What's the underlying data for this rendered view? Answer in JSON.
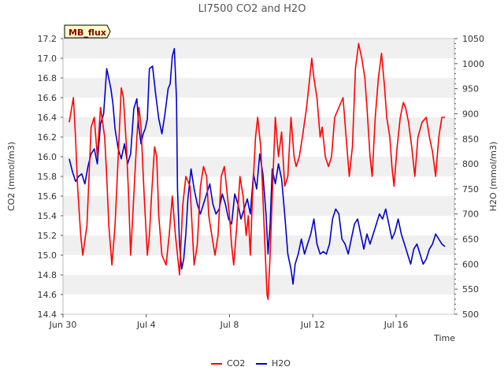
{
  "chart_data": {
    "type": "line",
    "title": "LI7500 CO2 and H2O",
    "badge": "MB_flux",
    "xlabel": "Time",
    "ylabel_left": "CO2 (mmol/m3)",
    "ylabel_right": "H2O (mmol/m3)",
    "x_range_days": [
      0,
      18.8
    ],
    "x_ticks": [
      {
        "label": "Jun 30",
        "day": 0
      },
      {
        "label": "Jul 4",
        "day": 4
      },
      {
        "label": "Jul 8",
        "day": 8
      },
      {
        "label": "Jul 12",
        "day": 12
      },
      {
        "label": "Jul 16",
        "day": 16
      }
    ],
    "ylim_left": [
      14.4,
      17.2
    ],
    "yticks_left": [
      "14.4",
      "14.6",
      "14.8",
      "15.0",
      "15.2",
      "15.4",
      "15.6",
      "15.8",
      "16.0",
      "16.2",
      "16.4",
      "16.6",
      "16.8",
      "17.0",
      "17.2"
    ],
    "ylim_right": [
      500,
      1050
    ],
    "yticks_right": [
      "500",
      "550",
      "600",
      "650",
      "700",
      "750",
      "800",
      "850",
      "900",
      "950",
      "1000",
      "1050"
    ],
    "grid": "alternating horizontal bands",
    "legend_position": "bottom-center",
    "series": [
      {
        "name": "CO2",
        "axis": "left",
        "color": "#ff0000",
        "points": [
          [
            0.3,
            16.35
          ],
          [
            0.5,
            16.6
          ],
          [
            0.6,
            16.2
          ],
          [
            0.7,
            15.7
          ],
          [
            0.85,
            15.2
          ],
          [
            0.95,
            15.0
          ],
          [
            1.15,
            15.3
          ],
          [
            1.35,
            16.3
          ],
          [
            1.5,
            16.4
          ],
          [
            1.65,
            16.0
          ],
          [
            1.8,
            16.5
          ],
          [
            2.0,
            16.2
          ],
          [
            2.1,
            15.8
          ],
          [
            2.2,
            15.3
          ],
          [
            2.35,
            14.9
          ],
          [
            2.5,
            15.3
          ],
          [
            2.65,
            16.0
          ],
          [
            2.8,
            16.7
          ],
          [
            2.9,
            16.6
          ],
          [
            3.05,
            16.1
          ],
          [
            3.15,
            15.6
          ],
          [
            3.25,
            15.0
          ],
          [
            3.35,
            15.4
          ],
          [
            3.45,
            15.8
          ],
          [
            3.55,
            16.2
          ],
          [
            3.65,
            16.5
          ],
          [
            3.75,
            16.3
          ],
          [
            3.9,
            15.6
          ],
          [
            4.05,
            15.0
          ],
          [
            4.15,
            15.2
          ],
          [
            4.25,
            15.6
          ],
          [
            4.4,
            16.1
          ],
          [
            4.5,
            16.0
          ],
          [
            4.6,
            15.4
          ],
          [
            4.75,
            15.0
          ],
          [
            4.95,
            14.9
          ],
          [
            5.1,
            15.2
          ],
          [
            5.25,
            15.6
          ],
          [
            5.4,
            15.2
          ],
          [
            5.5,
            15.0
          ],
          [
            5.6,
            14.8
          ],
          [
            5.75,
            15.5
          ],
          [
            5.9,
            15.8
          ],
          [
            6.1,
            15.7
          ],
          [
            6.2,
            15.3
          ],
          [
            6.3,
            14.9
          ],
          [
            6.45,
            15.1
          ],
          [
            6.6,
            15.7
          ],
          [
            6.75,
            15.9
          ],
          [
            6.9,
            15.8
          ],
          [
            7.0,
            15.4
          ],
          [
            7.15,
            15.2
          ],
          [
            7.3,
            15.0
          ],
          [
            7.45,
            15.2
          ],
          [
            7.6,
            15.8
          ],
          [
            7.75,
            15.9
          ],
          [
            7.9,
            15.6
          ],
          [
            8.0,
            15.4
          ],
          [
            8.1,
            15.1
          ],
          [
            8.2,
            14.9
          ],
          [
            8.35,
            15.3
          ],
          [
            8.5,
            15.8
          ],
          [
            8.65,
            15.6
          ],
          [
            8.8,
            15.2
          ],
          [
            8.9,
            15.4
          ],
          [
            9.0,
            15.0
          ],
          [
            9.1,
            15.6
          ],
          [
            9.25,
            16.2
          ],
          [
            9.35,
            16.4
          ],
          [
            9.5,
            16.1
          ],
          [
            9.6,
            15.6
          ],
          [
            9.7,
            15.1
          ],
          [
            9.8,
            14.6
          ],
          [
            9.85,
            14.55
          ],
          [
            9.95,
            15.0
          ],
          [
            10.05,
            15.6
          ],
          [
            10.2,
            16.4
          ],
          [
            10.35,
            16.0
          ],
          [
            10.5,
            16.25
          ],
          [
            10.65,
            15.7
          ],
          [
            10.8,
            15.8
          ],
          [
            10.95,
            16.4
          ],
          [
            11.1,
            16.0
          ],
          [
            11.2,
            15.9
          ],
          [
            11.35,
            16.0
          ],
          [
            11.5,
            16.2
          ],
          [
            11.7,
            16.5
          ],
          [
            11.85,
            16.8
          ],
          [
            11.95,
            17.0
          ],
          [
            12.05,
            16.8
          ],
          [
            12.2,
            16.6
          ],
          [
            12.35,
            16.2
          ],
          [
            12.45,
            16.3
          ],
          [
            12.6,
            16.0
          ],
          [
            12.75,
            15.9
          ],
          [
            12.9,
            16.0
          ],
          [
            13.05,
            16.4
          ],
          [
            13.25,
            16.5
          ],
          [
            13.45,
            16.6
          ],
          [
            13.6,
            16.2
          ],
          [
            13.75,
            15.8
          ],
          [
            13.9,
            16.1
          ],
          [
            14.05,
            16.9
          ],
          [
            14.2,
            17.15
          ],
          [
            14.35,
            17.0
          ],
          [
            14.5,
            16.8
          ],
          [
            14.6,
            16.5
          ],
          [
            14.75,
            16.0
          ],
          [
            14.85,
            15.8
          ],
          [
            15.0,
            16.4
          ],
          [
            15.15,
            16.8
          ],
          [
            15.3,
            17.05
          ],
          [
            15.45,
            16.7
          ],
          [
            15.55,
            16.4
          ],
          [
            15.7,
            16.2
          ],
          [
            15.8,
            15.9
          ],
          [
            15.9,
            15.7
          ],
          [
            16.05,
            16.1
          ],
          [
            16.2,
            16.4
          ],
          [
            16.35,
            16.55
          ],
          [
            16.45,
            16.5
          ],
          [
            16.6,
            16.35
          ],
          [
            16.75,
            16.1
          ],
          [
            16.9,
            15.8
          ],
          [
            17.05,
            16.2
          ],
          [
            17.25,
            16.35
          ],
          [
            17.45,
            16.4
          ],
          [
            17.6,
            16.2
          ],
          [
            17.75,
            16.05
          ],
          [
            17.9,
            15.8
          ],
          [
            18.05,
            16.2
          ],
          [
            18.2,
            16.4
          ],
          [
            18.35,
            16.4
          ]
        ]
      },
      {
        "name": "H2O",
        "axis": "right",
        "color": "#0000cc",
        "points": [
          [
            0.3,
            810
          ],
          [
            0.45,
            785
          ],
          [
            0.6,
            765
          ],
          [
            0.75,
            775
          ],
          [
            0.9,
            780
          ],
          [
            1.05,
            760
          ],
          [
            1.2,
            795
          ],
          [
            1.35,
            820
          ],
          [
            1.5,
            830
          ],
          [
            1.65,
            800
          ],
          [
            1.8,
            880
          ],
          [
            1.95,
            900
          ],
          [
            2.1,
            990
          ],
          [
            2.2,
            970
          ],
          [
            2.3,
            950
          ],
          [
            2.4,
            920
          ],
          [
            2.5,
            870
          ],
          [
            2.65,
            830
          ],
          [
            2.8,
            810
          ],
          [
            2.95,
            840
          ],
          [
            3.1,
            800
          ],
          [
            3.25,
            820
          ],
          [
            3.4,
            910
          ],
          [
            3.55,
            930
          ],
          [
            3.65,
            870
          ],
          [
            3.75,
            840
          ],
          [
            3.85,
            860
          ],
          [
            3.95,
            870
          ],
          [
            4.05,
            890
          ],
          [
            4.15,
            990
          ],
          [
            4.3,
            995
          ],
          [
            4.45,
            940
          ],
          [
            4.6,
            890
          ],
          [
            4.75,
            860
          ],
          [
            4.9,
            900
          ],
          [
            5.05,
            950
          ],
          [
            5.15,
            960
          ],
          [
            5.25,
            1015
          ],
          [
            5.35,
            1030
          ],
          [
            5.45,
            930
          ],
          [
            5.5,
            750
          ],
          [
            5.6,
            640
          ],
          [
            5.7,
            590
          ],
          [
            5.8,
            610
          ],
          [
            5.9,
            660
          ],
          [
            6.0,
            730
          ],
          [
            6.15,
            790
          ],
          [
            6.3,
            750
          ],
          [
            6.45,
            720
          ],
          [
            6.6,
            700
          ],
          [
            6.75,
            720
          ],
          [
            6.9,
            740
          ],
          [
            7.05,
            760
          ],
          [
            7.2,
            720
          ],
          [
            7.35,
            700
          ],
          [
            7.5,
            710
          ],
          [
            7.65,
            740
          ],
          [
            7.8,
            720
          ],
          [
            7.95,
            690
          ],
          [
            8.1,
            680
          ],
          [
            8.25,
            740
          ],
          [
            8.4,
            720
          ],
          [
            8.55,
            690
          ],
          [
            8.7,
            710
          ],
          [
            8.85,
            730
          ],
          [
            9.0,
            700
          ],
          [
            9.15,
            780
          ],
          [
            9.3,
            750
          ],
          [
            9.45,
            820
          ],
          [
            9.6,
            780
          ],
          [
            9.75,
            700
          ],
          [
            9.85,
            620
          ],
          [
            9.95,
            680
          ],
          [
            10.05,
            790
          ],
          [
            10.2,
            760
          ],
          [
            10.35,
            800
          ],
          [
            10.5,
            770
          ],
          [
            10.65,
            700
          ],
          [
            10.8,
            620
          ],
          [
            10.95,
            590
          ],
          [
            11.05,
            560
          ],
          [
            11.15,
            600
          ],
          [
            11.3,
            620
          ],
          [
            11.45,
            650
          ],
          [
            11.6,
            620
          ],
          [
            11.75,
            640
          ],
          [
            11.9,
            660
          ],
          [
            12.05,
            690
          ],
          [
            12.2,
            640
          ],
          [
            12.35,
            620
          ],
          [
            12.5,
            625
          ],
          [
            12.65,
            620
          ],
          [
            12.8,
            640
          ],
          [
            12.95,
            690
          ],
          [
            13.1,
            710
          ],
          [
            13.25,
            700
          ],
          [
            13.4,
            650
          ],
          [
            13.55,
            640
          ],
          [
            13.7,
            620
          ],
          [
            13.85,
            650
          ],
          [
            14.0,
            680
          ],
          [
            14.15,
            690
          ],
          [
            14.3,
            660
          ],
          [
            14.45,
            630
          ],
          [
            14.6,
            660
          ],
          [
            14.75,
            640
          ],
          [
            14.9,
            660
          ],
          [
            15.05,
            680
          ],
          [
            15.2,
            700
          ],
          [
            15.35,
            690
          ],
          [
            15.5,
            710
          ],
          [
            15.65,
            680
          ],
          [
            15.8,
            650
          ],
          [
            15.95,
            665
          ],
          [
            16.1,
            690
          ],
          [
            16.25,
            660
          ],
          [
            16.4,
            640
          ],
          [
            16.55,
            620
          ],
          [
            16.7,
            600
          ],
          [
            16.85,
            630
          ],
          [
            17.0,
            640
          ],
          [
            17.15,
            620
          ],
          [
            17.3,
            600
          ],
          [
            17.45,
            610
          ],
          [
            17.6,
            630
          ],
          [
            17.75,
            640
          ],
          [
            17.9,
            660
          ],
          [
            18.05,
            650
          ],
          [
            18.2,
            640
          ],
          [
            18.35,
            635
          ]
        ]
      }
    ]
  }
}
